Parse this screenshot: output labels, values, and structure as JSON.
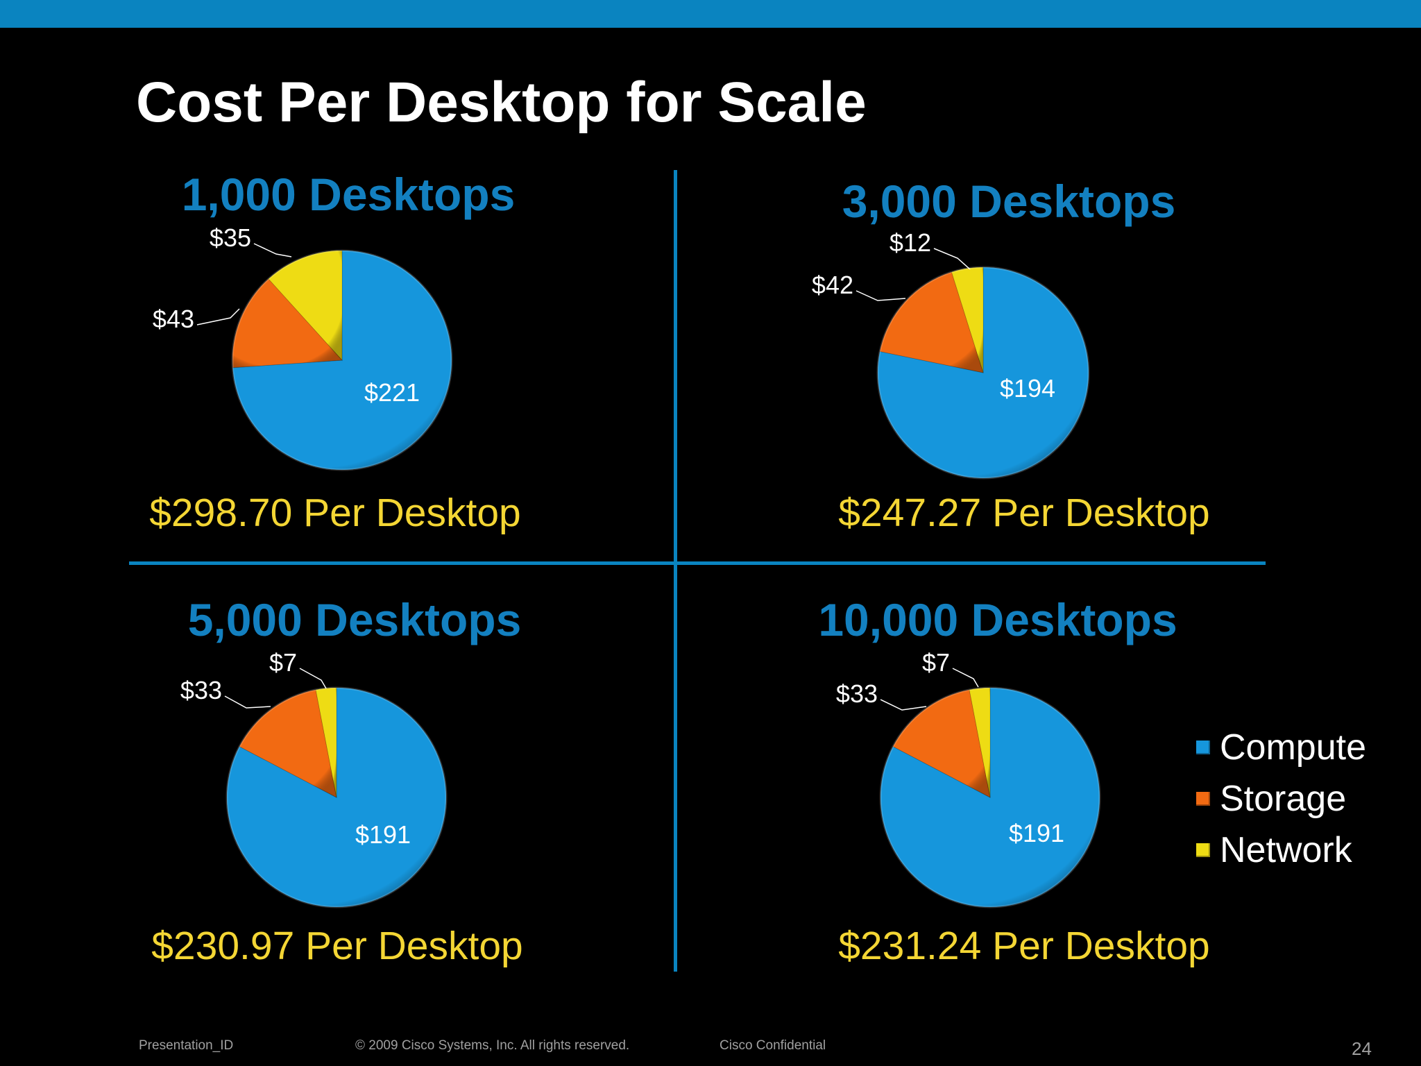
{
  "title": "Cost Per Desktop for Scale",
  "colors": {
    "accent": "#0a84c0",
    "heading_blue": "#1380c0",
    "cost_yellow": "#f4d634",
    "compute": "#1696dc",
    "storage": "#f26a12",
    "network": "#eedc14"
  },
  "legend": {
    "items": [
      {
        "label": "Compute",
        "color": "#1696dc"
      },
      {
        "label": "Storage",
        "color": "#f26a12"
      },
      {
        "label": "Network",
        "color": "#eedc14"
      }
    ]
  },
  "panels": [
    {
      "title": "1,000 Desktops",
      "per_desktop": "$298.70 Per Desktop"
    },
    {
      "title": "3,000 Desktops",
      "per_desktop": "$247.27 Per Desktop"
    },
    {
      "title": "5,000 Desktops",
      "per_desktop": "$230.97 Per Desktop"
    },
    {
      "title": "10,000 Desktops",
      "per_desktop": "$231.24 Per Desktop"
    }
  ],
  "chart_data": [
    {
      "type": "pie",
      "title": "1,000 Desktops",
      "categories": [
        "Compute",
        "Storage",
        "Network"
      ],
      "values": [
        221,
        43,
        35
      ],
      "labels": [
        "$221",
        "$43",
        "$35"
      ]
    },
    {
      "type": "pie",
      "title": "3,000 Desktops",
      "categories": [
        "Compute",
        "Storage",
        "Network"
      ],
      "values": [
        194,
        42,
        12
      ],
      "labels": [
        "$194",
        "$42",
        "$12"
      ]
    },
    {
      "type": "pie",
      "title": "5,000 Desktops",
      "categories": [
        "Compute",
        "Storage",
        "Network"
      ],
      "values": [
        191,
        33,
        7
      ],
      "labels": [
        "$191",
        "$33",
        "$7"
      ]
    },
    {
      "type": "pie",
      "title": "10,000 Desktops",
      "categories": [
        "Compute",
        "Storage",
        "Network"
      ],
      "values": [
        191,
        33,
        7
      ],
      "labels": [
        "$191",
        "$33",
        "$7"
      ]
    }
  ],
  "footer": {
    "presentation_id": "Presentation_ID",
    "copyright": "© 2009 Cisco Systems, Inc. All rights reserved.",
    "confidential": "Cisco Confidential",
    "page_number": "24"
  }
}
